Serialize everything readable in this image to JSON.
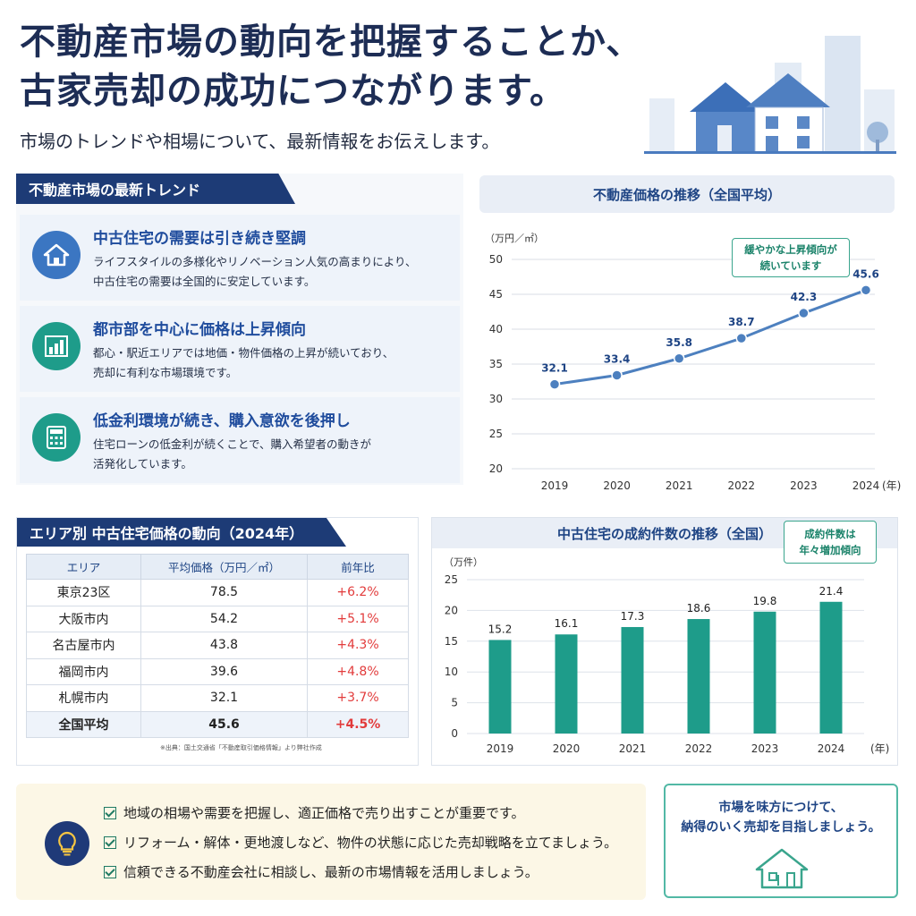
{
  "header": {
    "title_line1": "不動産市場の動向を把握することか、",
    "title_line2": "古家売却の成功につながります。",
    "subtitle": "市場のトレンドや相場について、最新情報をお伝えします。"
  },
  "trends": {
    "section_label": "不動産市場の最新トレンド",
    "items": [
      {
        "icon": "house-icon",
        "title": "中古住宅の需要は引き続き堅調",
        "desc_line1": "ライフスタイルの多様化やリノベーション人気の高まりにより、",
        "desc_line2": "中古住宅の需要は全国的に安定しています。"
      },
      {
        "icon": "bar-chart-icon",
        "title": "都市部を中心に価格は上昇傾向",
        "desc_line1": "都心・駅近エリアでは地価・物件価格の上昇が続いており、",
        "desc_line2": "売却に有利な市場環境です。"
      },
      {
        "icon": "calculator-icon",
        "title": "低金利環境が続き、購入意欲を後押し",
        "desc_line1": "住宅ローンの低金利が続くことで、購入希望者の動きが",
        "desc_line2": "活発化しています。"
      }
    ]
  },
  "price_chart": {
    "header": "不動産価格の推移（全国平均）",
    "unit": "（万円／㎡）",
    "callout_line1": "緩やかな上昇傾向が",
    "callout_line2": "続いています",
    "x_unit": "(年)"
  },
  "area_table": {
    "section_label": "エリア別 中古住宅価格の動向（2024年）",
    "headers": [
      "エリア",
      "平均価格（万円／㎡）",
      "前年比"
    ],
    "rows": [
      [
        "東京23区",
        "78.5",
        "+6.2%"
      ],
      [
        "大阪市内",
        "54.2",
        "+5.1%"
      ],
      [
        "名古屋市内",
        "43.8",
        "+4.3%"
      ],
      [
        "福岡市内",
        "39.6",
        "+4.8%"
      ],
      [
        "札幌市内",
        "32.1",
        "+3.7%"
      ],
      [
        "全国平均",
        "45.6",
        "+4.5%"
      ]
    ],
    "source": "※出典：国土交通省「不動産取引価格情報」より弊社作成"
  },
  "sales_chart": {
    "header": "中古住宅の成約件数の推移（全国）",
    "unit": "（万件）",
    "callout_line1": "成約件数は",
    "callout_line2": "年々増加傾向",
    "x_unit": "(年)"
  },
  "tips": {
    "items": [
      "地域の相場や需要を把握し、適正価格で売り出すことが重要です。",
      "リフォーム・解体・更地渡しなど、物件の状態に応じた売却戦略を立てましょう。",
      "信頼できる不動産会社に相談し、最新の市場情報を活用しましょう。"
    ]
  },
  "cta": {
    "line1": "市場を味方につけて、",
    "line2": "納得のいく売却を目指しましょう。"
  },
  "colors": {
    "navy": "#1d3b76",
    "line_blue": "#4d80bf",
    "bar_teal": "#1e9c8a",
    "positive_red": "#e23b3b"
  },
  "chart_data": [
    {
      "type": "line",
      "title": "不動産価格の推移（全国平均）",
      "ylabel": "（万円／㎡）",
      "xlabel": "(年)",
      "categories": [
        "2019",
        "2020",
        "2021",
        "2022",
        "2023",
        "2024"
      ],
      "values": [
        32.1,
        33.4,
        35.8,
        38.7,
        42.3,
        45.6
      ],
      "ylim": [
        20,
        50
      ],
      "yticks": [
        20,
        25,
        30,
        35,
        40,
        45,
        50
      ],
      "grid": true
    },
    {
      "type": "bar",
      "title": "中古住宅の成約件数の推移（全国）",
      "ylabel": "（万件）",
      "xlabel": "(年)",
      "categories": [
        "2019",
        "2020",
        "2021",
        "2022",
        "2023",
        "2024"
      ],
      "values": [
        15.2,
        16.1,
        17.3,
        18.6,
        19.8,
        21.4
      ],
      "ylim": [
        0,
        25
      ],
      "yticks": [
        0,
        5,
        10,
        15,
        20,
        25
      ],
      "grid": true
    }
  ]
}
